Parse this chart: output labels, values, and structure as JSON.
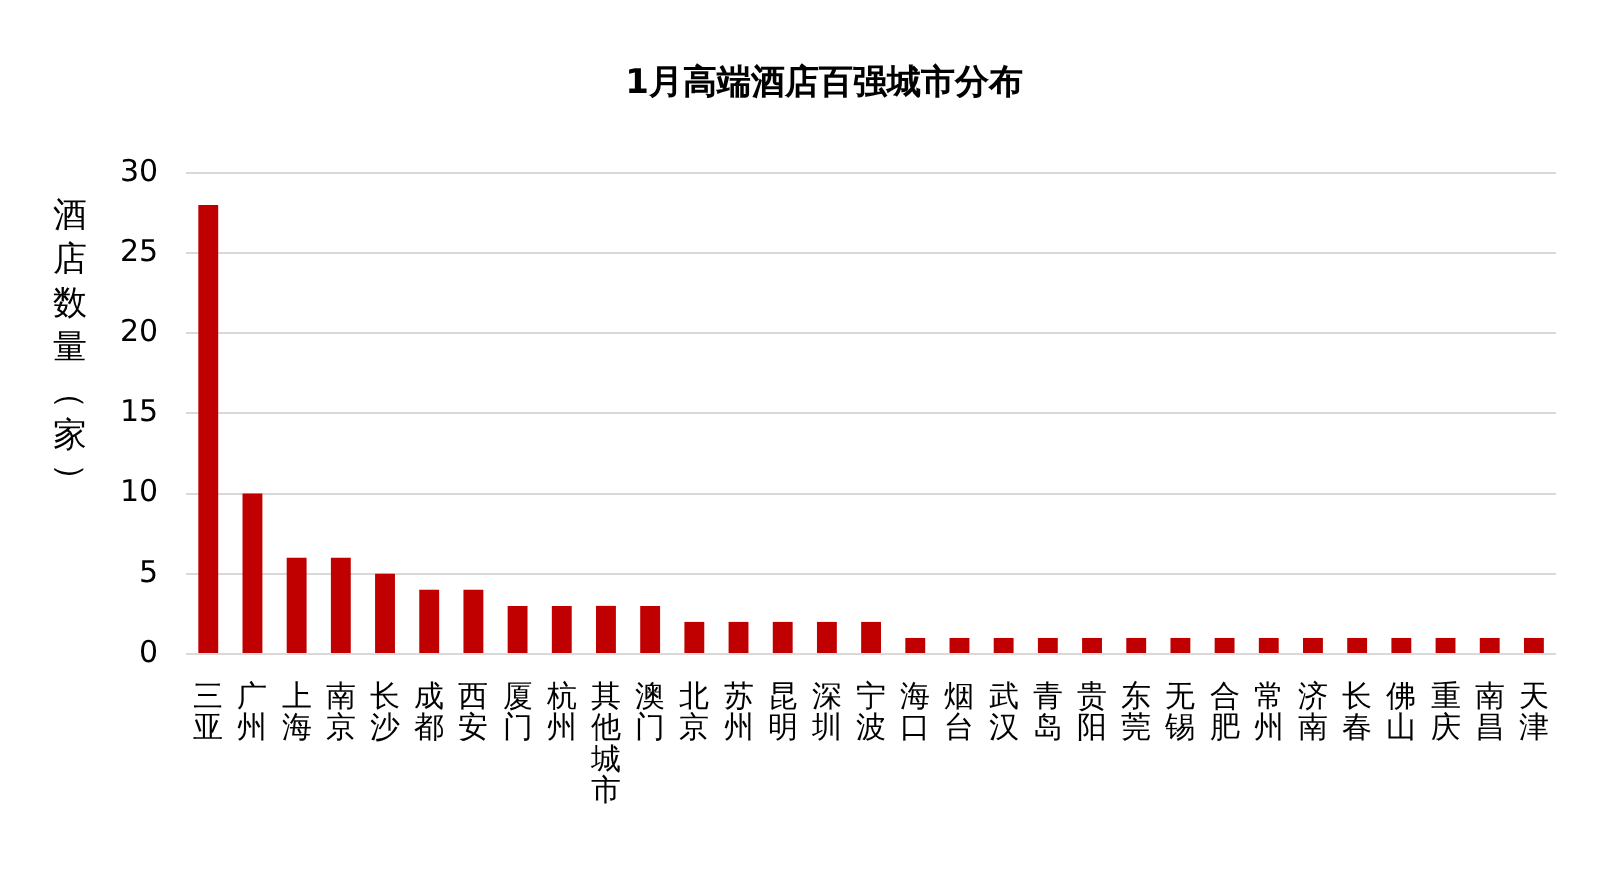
{
  "chart_data": {
    "type": "bar",
    "title": "1月高端酒店百强城市分布",
    "ylabel": "酒店数量（家）",
    "categories": [
      "三亚",
      "广州",
      "上海",
      "南京",
      "长沙",
      "成都",
      "西安",
      "厦门",
      "杭州",
      "其他城市",
      "澳门",
      "北京",
      "苏州",
      "昆明",
      "深圳",
      "宁波",
      "海口",
      "烟台",
      "武汉",
      "青岛",
      "贵阳",
      "东莞",
      "无锡",
      "合肥",
      "常州",
      "济南",
      "长春",
      "佛山",
      "重庆",
      "南昌",
      "天津"
    ],
    "values": [
      28,
      10,
      6,
      6,
      5,
      4,
      4,
      3,
      3,
      3,
      3,
      2,
      2,
      2,
      2,
      2,
      1,
      1,
      1,
      1,
      1,
      1,
      1,
      1,
      1,
      1,
      1,
      1,
      1,
      1,
      1
    ],
    "color": "#c00000",
    "ylim": [
      0,
      30
    ],
    "yticks": [
      0,
      5,
      10,
      15,
      20,
      25,
      30
    ],
    "grid": "y"
  }
}
